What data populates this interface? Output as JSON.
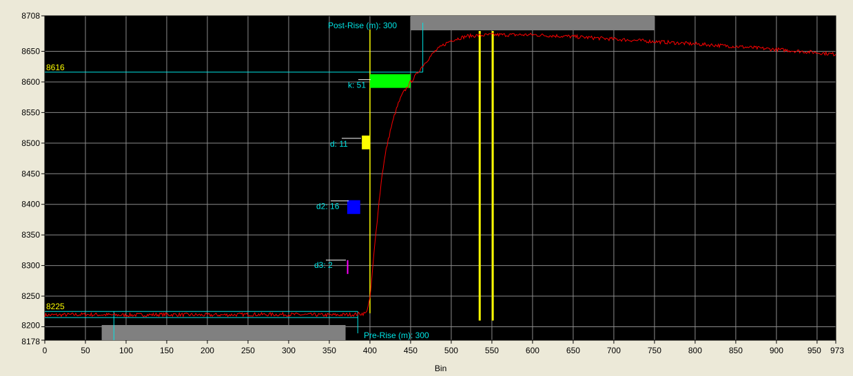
{
  "chart_data": {
    "type": "line",
    "xlabel": "Bin",
    "ylabel": "",
    "xlim": [
      0,
      973
    ],
    "ylim": [
      8178,
      8708
    ],
    "x_ticks": [
      0,
      50,
      100,
      150,
      200,
      250,
      300,
      350,
      400,
      450,
      500,
      550,
      600,
      650,
      700,
      750,
      800,
      850,
      900,
      950,
      973
    ],
    "y_ticks": [
      8178,
      8200,
      8250,
      8300,
      8350,
      8400,
      8450,
      8500,
      8550,
      8600,
      8650,
      8708
    ],
    "grid": true,
    "series": [
      {
        "color": "#ff0000",
        "x": [
          0,
          50,
          100,
          150,
          200,
          250,
          300,
          350,
          380,
          395,
          400,
          405,
          410,
          415,
          420,
          425,
          430,
          435,
          440,
          445,
          450,
          455,
          460,
          470,
          480,
          490,
          500,
          520,
          550,
          600,
          650,
          700,
          750,
          800,
          850,
          900,
          950,
          973
        ],
        "y": [
          8219,
          8220,
          8219,
          8220,
          8219,
          8220,
          8220,
          8219,
          8220,
          8222,
          8245,
          8320,
          8390,
          8450,
          8490,
          8520,
          8545,
          8565,
          8580,
          8590,
          8600,
          8608,
          8618,
          8635,
          8650,
          8660,
          8668,
          8675,
          8677,
          8677,
          8674,
          8670,
          8666,
          8662,
          8658,
          8653,
          8648,
          8645
        ]
      }
    ],
    "baselines": [
      {
        "label": "8225",
        "y": 8225,
        "x_end": 385
      },
      {
        "label": "8616",
        "y": 8616,
        "x_end": 465
      }
    ],
    "annotations": [
      {
        "label": "Post-Rise (m): 300"
      },
      {
        "label": "Pre-Rise (m): 300"
      },
      {
        "label": "k: 51"
      },
      {
        "label": "d: 11"
      },
      {
        "label": "d2: 16"
      },
      {
        "label": "d3: 2"
      }
    ],
    "markers": {
      "rise_start": 400,
      "post_rise_range": [
        450,
        750
      ],
      "pre_rise_range": [
        70,
        370
      ],
      "pre_rise_pick": 85,
      "post_rise_pick": 465,
      "k_bar": [
        400,
        450,
        8597
      ],
      "d_bar": [
        390,
        400,
        8500
      ],
      "d2_bar": [
        372,
        388,
        8400
      ],
      "d3_bar": [
        370,
        372,
        8302
      ],
      "yellow_verticals": [
        535,
        551
      ]
    },
    "colors": {
      "plot_bg": "#000000",
      "grid": "#8c8c8c",
      "signal": "#ff0000",
      "cyan": "#00e5e5",
      "yellow": "#ffff00",
      "k_bar": "#00ff00",
      "d2_bar": "#0000ff",
      "d3_bar": "#ff00ff",
      "range_bar": "#808080"
    }
  }
}
